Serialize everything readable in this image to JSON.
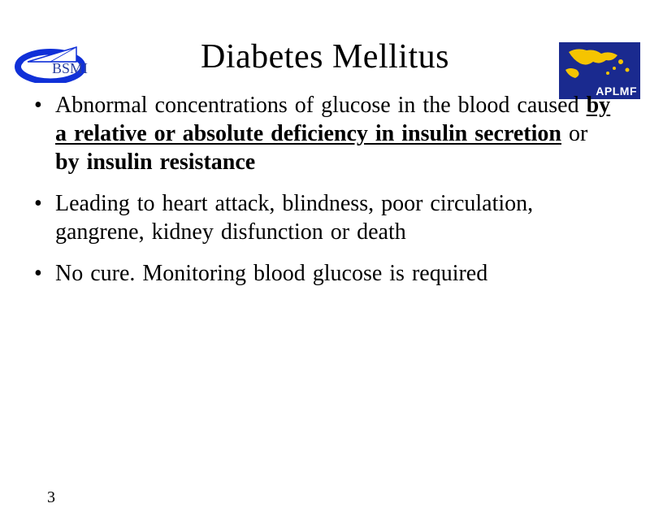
{
  "logos": {
    "left_text": "BSMI",
    "left_colors": {
      "ellipse": "#1030d8",
      "text": "#2a3fa0"
    },
    "right_text": "APLMF",
    "right_colors": {
      "bg": "#1a2a8f",
      "land": "#f5c400",
      "text": "#ffffff"
    }
  },
  "title": "Diabetes Mellitus",
  "bullets": [
    {
      "runs": [
        {
          "t": "Abnormal concentrations of glucose in the blood caused  ",
          "b": false,
          "u": false
        },
        {
          "t": "by a relative or absolute deficiency in insulin secretion",
          "b": true,
          "u": true
        },
        {
          "t": "  or  ",
          "b": false,
          "u": false
        },
        {
          "t": "by insulin resistance",
          "b": true,
          "u": false
        }
      ]
    },
    {
      "runs": [
        {
          "t": "Leading to heart attack, blindness, poor circulation, gangrene, kidney disfunction or death",
          "b": false,
          "u": false
        }
      ]
    },
    {
      "runs": [
        {
          "t": "No cure. Monitoring blood glucose is required",
          "b": false,
          "u": false
        }
      ]
    }
  ],
  "page_number": "3",
  "style": {
    "title_fontsize": 42,
    "body_fontsize": 28,
    "text_color": "#000000",
    "background_color": "#ffffff",
    "font_family": "Times New Roman"
  }
}
